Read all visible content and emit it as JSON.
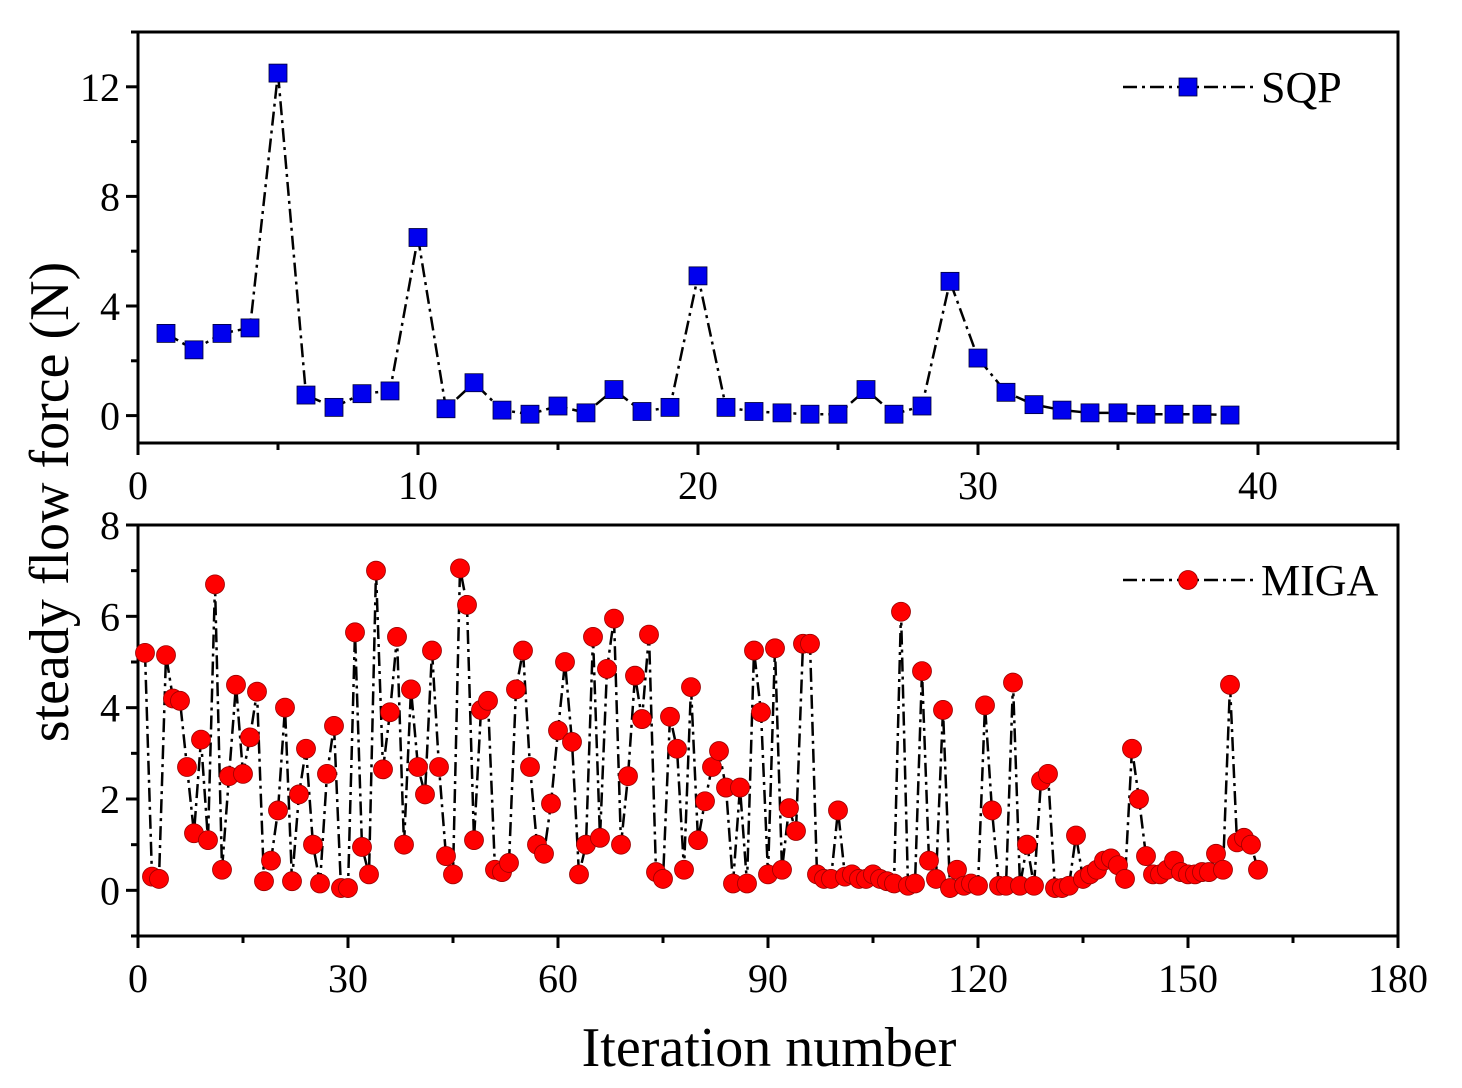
{
  "chart_data": [
    {
      "type": "line",
      "panel": "top",
      "title": "",
      "xlabel": "",
      "ylabel": "steady flow force (N)",
      "xlim": [
        0,
        45
      ],
      "ylim": [
        -1,
        14
      ],
      "xticks": [
        0,
        10,
        20,
        30,
        40
      ],
      "yticks": [
        0,
        4,
        8,
        12
      ],
      "xtick_labels": [
        "0",
        "10",
        "20",
        "30",
        "40"
      ],
      "ytick_labels": [
        "0",
        "4",
        "8",
        "12"
      ],
      "legend_position": "top-right",
      "series": [
        {
          "name": "SQP",
          "marker": "square",
          "color": "#0000ee",
          "line_style": "dash-dot",
          "x": [
            1,
            2,
            3,
            4,
            5,
            6,
            7,
            8,
            9,
            10,
            11,
            12,
            13,
            14,
            15,
            16,
            17,
            18,
            19,
            20,
            21,
            22,
            23,
            24,
            25,
            26,
            27,
            28,
            29,
            30,
            31,
            32,
            33,
            34,
            35,
            36,
            37,
            38,
            39
          ],
          "values": [
            3.0,
            2.4,
            3.0,
            3.2,
            12.5,
            0.75,
            0.3,
            0.8,
            0.9,
            6.5,
            0.25,
            1.2,
            0.2,
            0.05,
            0.35,
            0.1,
            0.95,
            0.15,
            0.3,
            5.1,
            0.3,
            0.15,
            0.1,
            0.05,
            0.05,
            0.95,
            0.05,
            0.35,
            4.9,
            2.1,
            0.85,
            0.4,
            0.2,
            0.1,
            0.1,
            0.05,
            0.05,
            0.05,
            0.02
          ]
        }
      ]
    },
    {
      "type": "line",
      "panel": "bottom",
      "title": "",
      "xlabel": "Iteration number",
      "ylabel": "steady flow force (N)",
      "xlim": [
        0,
        180
      ],
      "ylim": [
        -1,
        8
      ],
      "xticks": [
        0,
        30,
        60,
        90,
        120,
        150,
        180
      ],
      "yticks": [
        0,
        2,
        4,
        6,
        8
      ],
      "xtick_labels": [
        "0",
        "30",
        "60",
        "90",
        "120",
        "150",
        "180"
      ],
      "ytick_labels": [
        "0",
        "2",
        "4",
        "6",
        "8"
      ],
      "legend_position": "top-right",
      "series": [
        {
          "name": "MIGA",
          "marker": "circle",
          "color": "#ff0000",
          "line_style": "dash-dot",
          "values": [
            5.2,
            0.3,
            0.25,
            5.15,
            4.2,
            4.15,
            2.7,
            1.25,
            3.3,
            1.1,
            6.7,
            0.45,
            2.5,
            4.5,
            2.55,
            3.35,
            4.35,
            0.2,
            0.65,
            1.75,
            4.0,
            0.2,
            2.1,
            3.1,
            1.0,
            0.15,
            2.55,
            3.6,
            0.05,
            0.05,
            5.65,
            0.95,
            0.35,
            7.0,
            2.65,
            3.9,
            5.55,
            1.0,
            4.4,
            2.7,
            2.1,
            5.25,
            2.7,
            0.75,
            0.35,
            7.05,
            6.25,
            1.1,
            3.95,
            4.15,
            0.45,
            0.4,
            0.6,
            4.4,
            5.25,
            2.7,
            1.0,
            0.8,
            1.9,
            3.5,
            5.0,
            3.25,
            0.35,
            1.0,
            5.55,
            1.15,
            4.85,
            5.95,
            1.0,
            2.5,
            4.7,
            3.75,
            5.6,
            0.4,
            0.25,
            3.8,
            3.1,
            0.45,
            4.45,
            1.1,
            1.95,
            2.7,
            3.05,
            2.25,
            0.15,
            2.25,
            0.15,
            5.25,
            3.9,
            0.35,
            5.3,
            0.45,
            1.8,
            1.3,
            5.4,
            5.4,
            0.35,
            0.25,
            0.25,
            1.75,
            0.3,
            0.35,
            0.25,
            0.25,
            0.35,
            0.25,
            0.2,
            0.15,
            6.1,
            0.1,
            0.15,
            4.8,
            0.65,
            0.25,
            3.95,
            0.05,
            0.45,
            0.1,
            0.15,
            0.1,
            4.05,
            1.75,
            0.1,
            0.1,
            4.55,
            0.1,
            1.0,
            0.1,
            2.4,
            2.55,
            0.05,
            0.05,
            0.1,
            1.2,
            0.25,
            0.35,
            0.45,
            0.65,
            0.7,
            0.55,
            0.25,
            3.1,
            2.0,
            0.75,
            0.35,
            0.35,
            0.45,
            0.65,
            0.4,
            0.35,
            0.35,
            0.4,
            0.4,
            0.8,
            0.45,
            4.5,
            1.05,
            1.15,
            1.0,
            0.45
          ]
        }
      ]
    }
  ]
}
